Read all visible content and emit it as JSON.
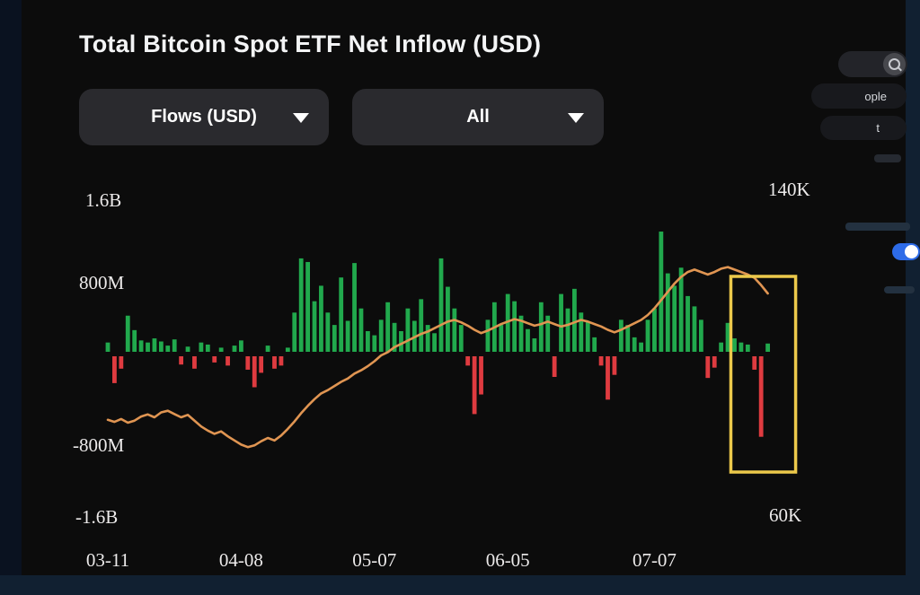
{
  "header": {
    "title": "Total Bitcoin Spot ETF Net Inflow (USD)"
  },
  "filters": {
    "metric_label": "Flows (USD)",
    "range_label": "All"
  },
  "side_panel": {
    "people_pill": "ople",
    "t_pill": "t"
  },
  "chart_data": {
    "type": "bar",
    "title": "Total Bitcoin Spot ETF Net Inflow (USD)",
    "legend_position": "none",
    "grid": false,
    "left_axis": {
      "unit": "USD",
      "labels": [
        "1.6B",
        "800M",
        "-800M",
        "-1.6B"
      ],
      "ylim": [
        -1600,
        1600
      ]
    },
    "right_axis": {
      "unit": "USD (BTC price)",
      "labels": [
        "140K",
        "60K"
      ],
      "ylim": [
        60,
        140
      ]
    },
    "x_ticks": [
      {
        "label": "03-11",
        "index": 0
      },
      {
        "label": "04-08",
        "index": 20
      },
      {
        "label": "05-07",
        "index": 40
      },
      {
        "label": "06-05",
        "index": 60
      },
      {
        "label": "07-07",
        "index": 82
      }
    ],
    "bars_unit": "millions USD (daily net inflow)",
    "bars": [
      90,
      -260,
      -120,
      350,
      210,
      110,
      90,
      130,
      100,
      60,
      120,
      -80,
      50,
      -120,
      90,
      70,
      -60,
      40,
      -90,
      60,
      110,
      -130,
      -300,
      -160,
      60,
      -120,
      -90,
      40,
      380,
      905,
      870,
      490,
      640,
      380,
      260,
      720,
      300,
      860,
      420,
      200,
      160,
      310,
      480,
      280,
      200,
      420,
      300,
      510,
      260,
      180,
      905,
      630,
      420,
      260,
      -90,
      -560,
      -370,
      310,
      480,
      260,
      560,
      490,
      350,
      220,
      130,
      480,
      350,
      -200,
      560,
      420,
      610,
      380,
      290,
      140,
      -90,
      -420,
      -180,
      310,
      260,
      140,
      90,
      310,
      420,
      1165,
      760,
      640,
      815,
      540,
      440,
      310,
      -210,
      -110,
      90,
      280,
      130,
      90,
      70,
      -130,
      -780,
      80
    ],
    "line_unit": "thousands USD (price overlay)",
    "line": [
      87.0,
      86.5,
      87.2,
      86.3,
      86.8,
      87.8,
      88.3,
      87.6,
      88.8,
      89.2,
      88.4,
      87.6,
      88.2,
      86.8,
      85.4,
      84.4,
      83.6,
      84.2,
      83.0,
      82.0,
      81.0,
      80.4,
      80.8,
      81.8,
      82.6,
      82.0,
      83.2,
      84.8,
      86.6,
      88.6,
      90.4,
      92.0,
      93.4,
      94.2,
      95.2,
      96.2,
      97.0,
      98.2,
      99.0,
      100.0,
      101.2,
      102.6,
      103.4,
      104.6,
      105.4,
      106.2,
      107.0,
      107.8,
      108.4,
      109.2,
      110.0,
      110.8,
      111.2,
      110.6,
      109.8,
      108.8,
      108.0,
      108.6,
      109.4,
      110.2,
      110.8,
      111.4,
      111.0,
      110.4,
      109.8,
      110.2,
      110.8,
      110.2,
      109.6,
      110.0,
      110.6,
      111.2,
      110.8,
      110.2,
      109.6,
      108.8,
      108.2,
      108.8,
      109.6,
      110.4,
      111.2,
      112.4,
      114.0,
      116.0,
      118.0,
      120.0,
      121.6,
      122.8,
      123.4,
      122.8,
      122.2,
      122.8,
      123.6,
      124.0,
      123.4,
      122.8,
      122.2,
      121.4,
      119.6,
      117.6
    ],
    "highlight_region": {
      "from_index": 94,
      "to_index": 99
    },
    "colors": {
      "positive": "#21a94d",
      "negative": "#df3b40",
      "line": "#e09552",
      "highlight": "#ecc94b"
    }
  }
}
